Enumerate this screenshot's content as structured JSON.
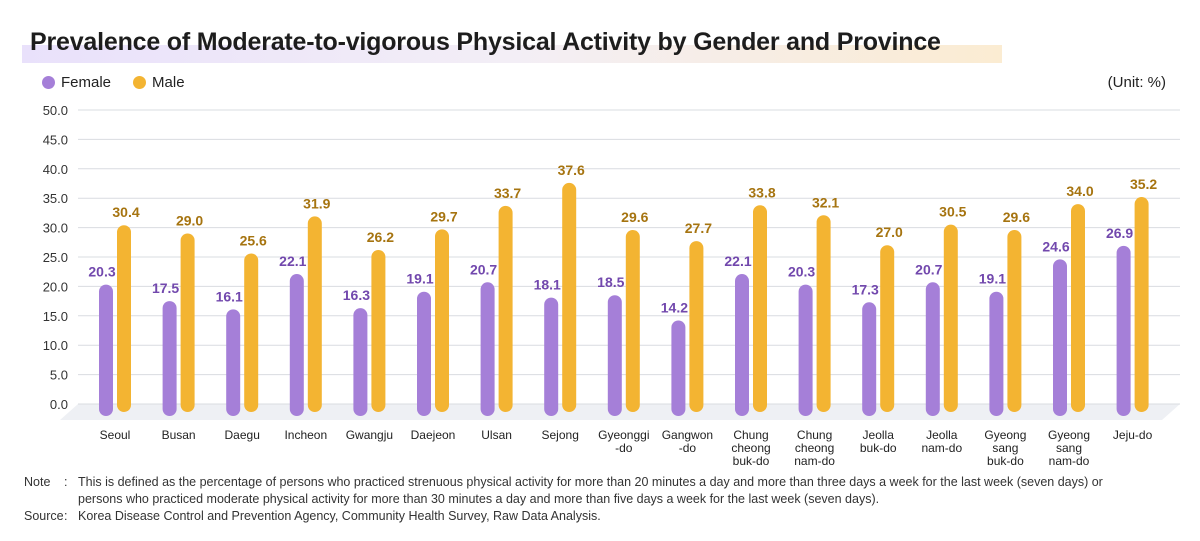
{
  "title": "Prevalence of Moderate-to-vigorous Physical Activity by Gender and Province",
  "unit_label": "(Unit: %)",
  "colors": {
    "female": "#a57fd8",
    "male": "#f3b432",
    "female_label": "#7248ad",
    "male_label": "#a67410"
  },
  "chart_data": {
    "type": "bar",
    "title": "Prevalence of Moderate-to-vigorous Physical Activity by Gender and Province",
    "xlabel": "",
    "ylabel": "",
    "ylim": [
      0,
      50
    ],
    "yticks": [
      "0.0",
      "5.0",
      "10.0",
      "15.0",
      "20.0",
      "25.0",
      "30.0",
      "35.0",
      "40.0",
      "45.0",
      "50.0"
    ],
    "legend_position": "top-left",
    "categories": [
      [
        "Seoul"
      ],
      [
        "Busan"
      ],
      [
        "Daegu"
      ],
      [
        "Incheon"
      ],
      [
        "Gwangju"
      ],
      [
        "Daejeon"
      ],
      [
        "Ulsan"
      ],
      [
        "Sejong"
      ],
      [
        "Gyeonggi",
        "-do"
      ],
      [
        "Gangwon",
        "-do"
      ],
      [
        "Chung",
        "cheong",
        "buk-do"
      ],
      [
        "Chung",
        "cheong",
        "nam-do"
      ],
      [
        "Jeolla",
        "buk-do"
      ],
      [
        "Jeolla",
        "nam-do"
      ],
      [
        "Gyeong",
        "sang",
        "buk-do"
      ],
      [
        "Gyeong",
        "sang",
        "nam-do"
      ],
      [
        "Jeju-do"
      ]
    ],
    "series": [
      {
        "name": "Female",
        "values": [
          20.3,
          17.5,
          16.1,
          22.1,
          16.3,
          19.1,
          20.7,
          18.1,
          18.5,
          14.2,
          22.1,
          20.3,
          17.3,
          20.7,
          19.1,
          24.6,
          26.9
        ]
      },
      {
        "name": "Male",
        "values": [
          30.4,
          29.0,
          25.6,
          31.9,
          26.2,
          29.7,
          33.7,
          37.6,
          29.6,
          27.7,
          33.8,
          32.1,
          27.0,
          30.5,
          29.6,
          34.0,
          35.2
        ]
      }
    ]
  },
  "note": {
    "label": "Note",
    "sep": ":",
    "lines": [
      "This is defined as the percentage of persons who practiced strenuous physical activity for more than 20 minutes a day and more than three days a week for the last week (seven days) or",
      "persons who practiced moderate physical activity for more than 30 minutes a day and more than five days a week for the last week (seven days)."
    ]
  },
  "source": {
    "label": "Source",
    "sep": ":",
    "text": "Korea Disease Control and Prevention Agency, Community Health Survey, Raw Data Analysis."
  }
}
